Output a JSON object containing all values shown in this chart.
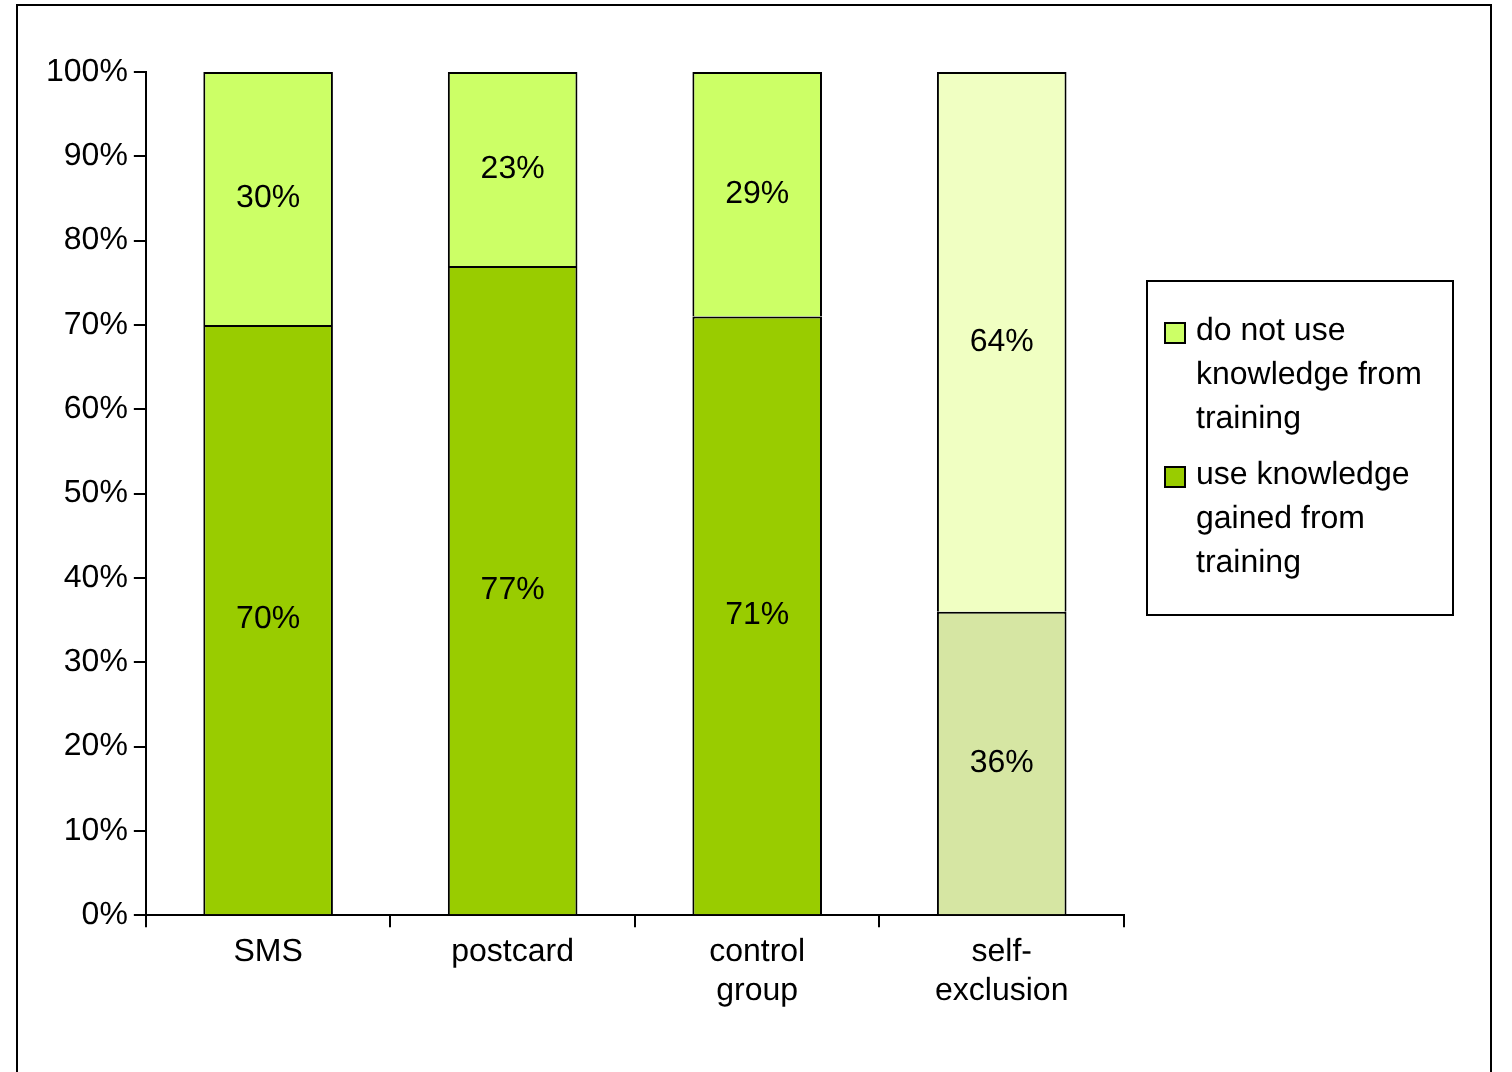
{
  "chart_data": {
    "type": "bar",
    "stacked": true,
    "categories": [
      "SMS",
      "postcard",
      "control group",
      "self-exclusion"
    ],
    "series": [
      {
        "name": "use knowledge gained from training",
        "colors": [
          "#99cc00",
          "#99cc00",
          "#99cc00",
          "#d6e6a3"
        ],
        "values": [
          70,
          77,
          71,
          36
        ],
        "value_labels": [
          "70%",
          "77%",
          "71%",
          "36%"
        ]
      },
      {
        "name": "do not use knowledge from training",
        "colors": [
          "#ccff66",
          "#ccff66",
          "#ccff66",
          "#f0ffc2"
        ],
        "values": [
          30,
          23,
          29,
          64
        ],
        "value_labels": [
          "30%",
          "23%",
          "29%",
          "64%"
        ]
      }
    ],
    "ylim": [
      0,
      100
    ],
    "yticks": [
      {
        "value": 0,
        "label": "0%"
      },
      {
        "value": 10,
        "label": "10%"
      },
      {
        "value": 20,
        "label": "20%"
      },
      {
        "value": 30,
        "label": "30%"
      },
      {
        "value": 40,
        "label": "40%"
      },
      {
        "value": 50,
        "label": "50%"
      },
      {
        "value": 60,
        "label": "60%"
      },
      {
        "value": 70,
        "label": "70%"
      },
      {
        "value": 80,
        "label": "80%"
      },
      {
        "value": 90,
        "label": "90%"
      },
      {
        "value": 100,
        "label": "100%"
      }
    ],
    "grid": false,
    "legend": "right"
  }
}
